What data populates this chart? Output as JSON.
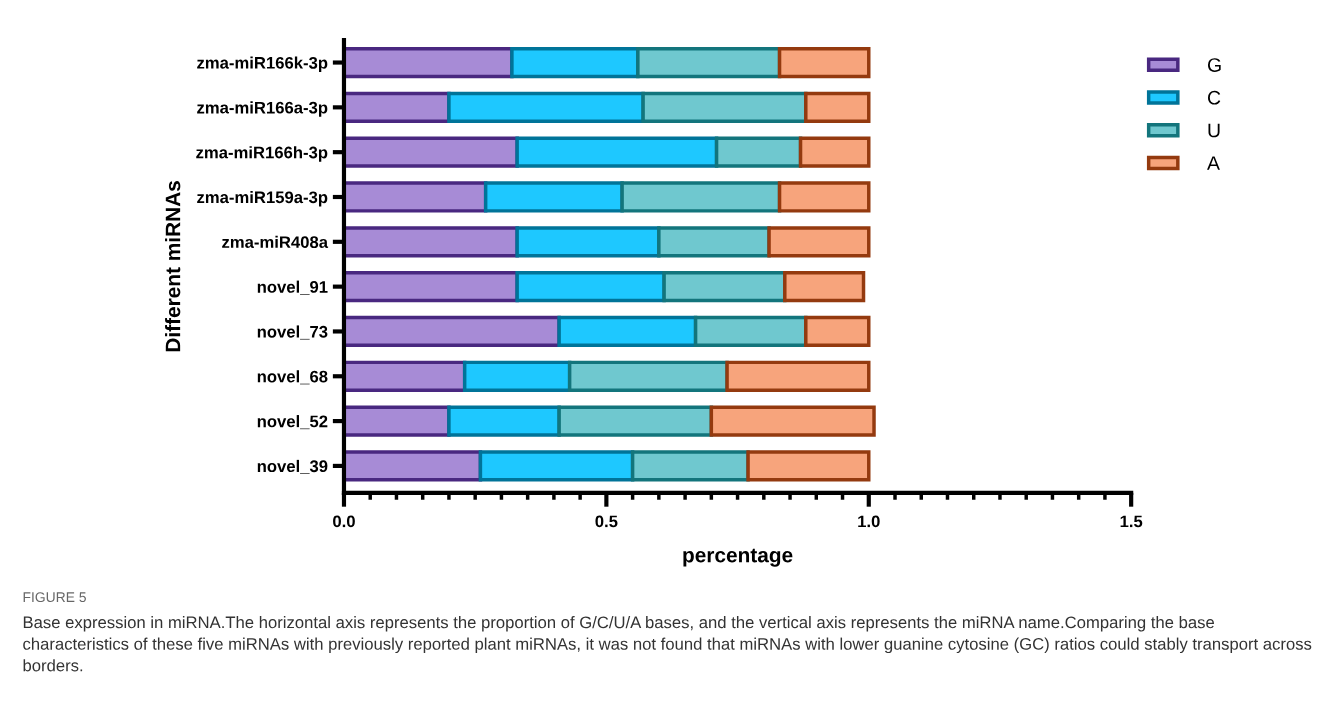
{
  "chart_data": {
    "type": "bar",
    "orientation": "horizontal",
    "stacked": true,
    "xlabel": "percentage",
    "ylabel": "Different miRNAs",
    "categories": [
      "zma-miR166k-3p",
      "zma-miR166a-3p",
      "zma-miR166h-3p",
      "zma-miR159a-3p",
      "zma-miR408a",
      "novel_91",
      "novel_73",
      "novel_68",
      "novel_52",
      "novel_39"
    ],
    "series": [
      {
        "name": "G",
        "color": "#a78bd6",
        "values": [
          0.32,
          0.2,
          0.33,
          0.27,
          0.33,
          0.33,
          0.41,
          0.23,
          0.2,
          0.26
        ]
      },
      {
        "name": "C",
        "color": "#1ec8ff",
        "values": [
          0.24,
          0.37,
          0.38,
          0.26,
          0.27,
          0.28,
          0.26,
          0.2,
          0.21,
          0.29
        ]
      },
      {
        "name": "U",
        "color": "#6fc8cf",
        "values": [
          0.27,
          0.31,
          0.16,
          0.3,
          0.21,
          0.23,
          0.21,
          0.3,
          0.29,
          0.22
        ]
      },
      {
        "name": "A",
        "color": "#f7a47c",
        "values": [
          0.17,
          0.12,
          0.13,
          0.17,
          0.19,
          0.15,
          0.12,
          0.27,
          0.31,
          0.23
        ]
      }
    ],
    "xlim": [
      0,
      1.5
    ],
    "xticks": [
      {
        "value": 0,
        "label": "0.0"
      },
      {
        "value": 0.05,
        "label": null
      },
      {
        "value": 0.1,
        "label": null
      },
      {
        "value": 0.15,
        "label": null
      },
      {
        "value": 0.2,
        "label": null
      },
      {
        "value": 0.25,
        "label": null
      },
      {
        "value": 0.3,
        "label": null
      },
      {
        "value": 0.35,
        "label": null
      },
      {
        "value": 0.4,
        "label": null
      },
      {
        "value": 0.45,
        "label": null
      },
      {
        "value": 0.5,
        "label": "0.5"
      },
      {
        "value": 0.55,
        "label": null
      },
      {
        "value": 0.6,
        "label": null
      },
      {
        "value": 0.65,
        "label": null
      },
      {
        "value": 0.7,
        "label": null
      },
      {
        "value": 0.75,
        "label": null
      },
      {
        "value": 0.8,
        "label": null
      },
      {
        "value": 0.85,
        "label": null
      },
      {
        "value": 0.9,
        "label": null
      },
      {
        "value": 0.95,
        "label": null
      },
      {
        "value": 1.0,
        "label": "1.0"
      },
      {
        "value": 1.05,
        "label": null
      },
      {
        "value": 1.1,
        "label": null
      },
      {
        "value": 1.15,
        "label": null
      },
      {
        "value": 1.2,
        "label": null
      },
      {
        "value": 1.25,
        "label": null
      },
      {
        "value": 1.3,
        "label": null
      },
      {
        "value": 1.35,
        "label": null
      },
      {
        "value": 1.4,
        "label": null
      },
      {
        "value": 1.45,
        "label": null
      },
      {
        "value": 1.5,
        "label": "1.5"
      }
    ],
    "grid": false,
    "legend": "top right",
    "annotations": [
      "FIGURE 5",
      "Base expression in miRNA.The horizontal axis represents the proportion of G/C/U/A bases, and the vertical axis represents the miRNA name.Comparing the base characteristics of these five miRNAs with previously reported plant miRNAs, it was not found that miRNAs with lower guanine cytosine (GC) ratios could stably transport across borders."
    ]
  }
}
